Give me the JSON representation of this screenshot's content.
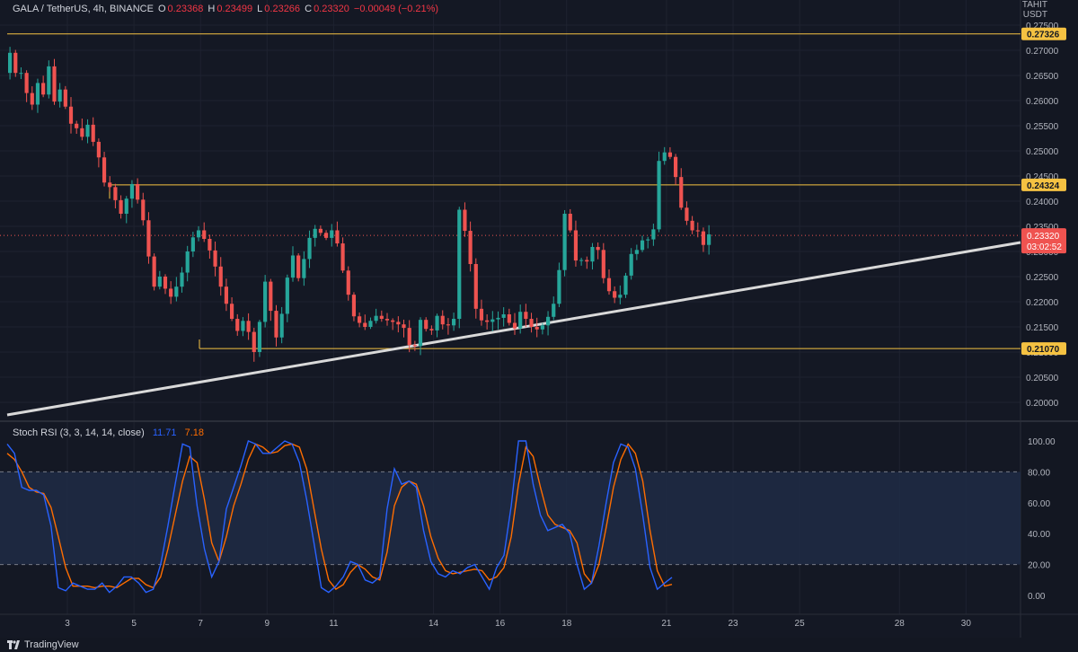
{
  "header": {
    "symbol": "GALA / TetherUS, 4h, BINANCE",
    "o_label": "O",
    "o_value": "0.23368",
    "h_label": "H",
    "h_value": "0.23499",
    "l_label": "L",
    "l_value": "0.23266",
    "c_label": "C",
    "c_value": "0.23320",
    "change": "−0.00049 (−0.21%)"
  },
  "axis_unit": {
    "line1": "TAHIT",
    "line2": "USDT"
  },
  "price_axis": {
    "ticks": [
      "0.27500",
      "0.27000",
      "0.26500",
      "0.26000",
      "0.25500",
      "0.25000",
      "0.24500",
      "0.24000",
      "0.23500",
      "0.23000",
      "0.22500",
      "0.22000",
      "0.21500",
      "0.21000",
      "0.20500",
      "0.20000"
    ],
    "labels": [
      {
        "text": "0.27326",
        "value": 0.27326,
        "kind": "level"
      },
      {
        "text": "0.24324",
        "value": 0.24324,
        "kind": "level"
      },
      {
        "text": "0.21070",
        "value": 0.2107,
        "kind": "level"
      },
      {
        "text": "0.23320",
        "value": 0.2332,
        "kind": "last"
      },
      {
        "text": "03:02:52",
        "kind": "countdown"
      }
    ]
  },
  "rsi_header": {
    "name": "Stoch RSI (3, 3, 14, 14, close)",
    "k": "11.71",
    "d": "7.18"
  },
  "rsi_axis": {
    "ticks": [
      "100.00",
      "80.00",
      "60.00",
      "40.00",
      "20.00",
      "0.00"
    ]
  },
  "time_axis": {
    "ticks": [
      "3",
      "5",
      "7",
      "9",
      "11",
      "14",
      "16",
      "18",
      "21",
      "23",
      "25",
      "28",
      "30"
    ]
  },
  "brand": {
    "name": "TradingView"
  },
  "colors": {
    "up": "#26a69a",
    "down": "#ef5350",
    "level": "#f5c242",
    "trend": "#d9d9d9",
    "k": "#2962ff",
    "d": "#ff6d00",
    "band": "#1e2b45"
  },
  "chart_data": [
    {
      "type": "candlestick",
      "title": "GALA / TetherUS, 4h, BINANCE",
      "ylim": [
        0.1955,
        0.279
      ],
      "x_ticks": [
        "3",
        "5",
        "7",
        "9",
        "11",
        "14",
        "16",
        "18",
        "21",
        "23",
        "25",
        "28",
        "30"
      ],
      "horizontal_levels": [
        0.27326,
        0.24324,
        0.2107
      ],
      "trendline": {
        "from": [
          0,
          0.1975
        ],
        "to": [
          206,
          0.2315
        ]
      },
      "last_price": 0.2332,
      "series": [
        {
          "values": [
            0.2695,
            0.2655,
            0.2655,
            0.2615,
            0.2592,
            0.2635,
            0.2612,
            0.2668,
            0.2598,
            0.2622,
            0.2588,
            0.2554,
            0.2545,
            0.2528,
            0.2552,
            0.2518,
            0.2487,
            0.2437,
            0.2428,
            0.2402,
            0.2375,
            0.2405,
            0.2434,
            0.2403,
            0.2362,
            0.229,
            0.223,
            0.225,
            0.2226,
            0.221,
            0.223,
            0.2258,
            0.23,
            0.2328,
            0.2342,
            0.2325,
            0.2302,
            0.227,
            0.223,
            0.2196,
            0.2166,
            0.2142,
            0.2162,
            0.214,
            0.21,
            0.216,
            0.224,
            0.2182,
            0.2129,
            0.2176,
            0.2248,
            0.2292,
            0.2247,
            0.2285,
            0.2327,
            0.2345,
            0.2337,
            0.2327,
            0.2342,
            0.2316,
            0.2262,
            0.2214,
            0.2171,
            0.2158,
            0.215,
            0.2162,
            0.2172,
            0.2166,
            0.2163,
            0.216,
            0.2155,
            0.2148,
            0.2114,
            0.2112,
            0.2164,
            0.2146,
            0.2143,
            0.2172,
            0.2155,
            0.2153,
            0.2166,
            0.2383,
            0.2341,
            0.2275,
            0.2186,
            0.2163,
            0.216,
            0.2165,
            0.2168,
            0.2175,
            0.2158,
            0.2147,
            0.218,
            0.2166,
            0.215,
            0.2145,
            0.2153,
            0.217,
            0.2196,
            0.2263,
            0.2375,
            0.2342,
            0.2282,
            0.2283,
            0.228,
            0.2309,
            0.2303,
            0.2247,
            0.2221,
            0.2208,
            0.2214,
            0.2252,
            0.2295,
            0.2303,
            0.2322,
            0.2324,
            0.2344,
            0.248,
            0.2497,
            0.2488,
            0.2448,
            0.2387,
            0.2361,
            0.2342,
            0.234,
            0.2313,
            0.2334
          ]
        }
      ]
    },
    {
      "type": "line",
      "title": "Stoch RSI (3, 3, 14, 14, close)",
      "ylim": [
        -5,
        105
      ],
      "y_ticks": [
        0,
        20,
        40,
        60,
        80,
        100
      ],
      "band": [
        20,
        80
      ],
      "series": [
        {
          "name": "K",
          "values": [
            98,
            92,
            70,
            68,
            68,
            65,
            45,
            5,
            3,
            8,
            6,
            4,
            4,
            8,
            2,
            6,
            12,
            12,
            8,
            2,
            4,
            20,
            45,
            72,
            98,
            96,
            58,
            30,
            12,
            22,
            56,
            70,
            84,
            100,
            98,
            92,
            92,
            96,
            100,
            98,
            86,
            62,
            34,
            5,
            2,
            6,
            12,
            22,
            20,
            10,
            8,
            12,
            56,
            82,
            72,
            74,
            70,
            42,
            22,
            14,
            12,
            16,
            14,
            18,
            20,
            12,
            4,
            18,
            26,
            58,
            100,
            100,
            72,
            52,
            42,
            44,
            46,
            40,
            20,
            4,
            8,
            32,
            60,
            86,
            98,
            96,
            82,
            52,
            18,
            4,
            8,
            11.71
          ]
        },
        {
          "name": "D",
          "values": [
            92,
            88,
            80,
            70,
            67,
            66,
            57,
            38,
            18,
            6,
            6,
            6,
            5,
            6,
            6,
            5,
            8,
            11,
            11,
            7,
            5,
            12,
            30,
            52,
            74,
            90,
            86,
            62,
            34,
            22,
            38,
            58,
            72,
            88,
            98,
            96,
            92,
            93,
            97,
            98,
            96,
            82,
            56,
            30,
            10,
            4,
            7,
            15,
            20,
            17,
            12,
            10,
            28,
            58,
            70,
            74,
            72,
            58,
            38,
            24,
            16,
            14,
            15,
            16,
            17,
            16,
            10,
            12,
            18,
            38,
            72,
            96,
            90,
            70,
            52,
            46,
            44,
            42,
            34,
            14,
            8,
            20,
            44,
            70,
            88,
            98,
            92,
            74,
            42,
            16,
            6,
            7.18
          ]
        }
      ]
    }
  ]
}
